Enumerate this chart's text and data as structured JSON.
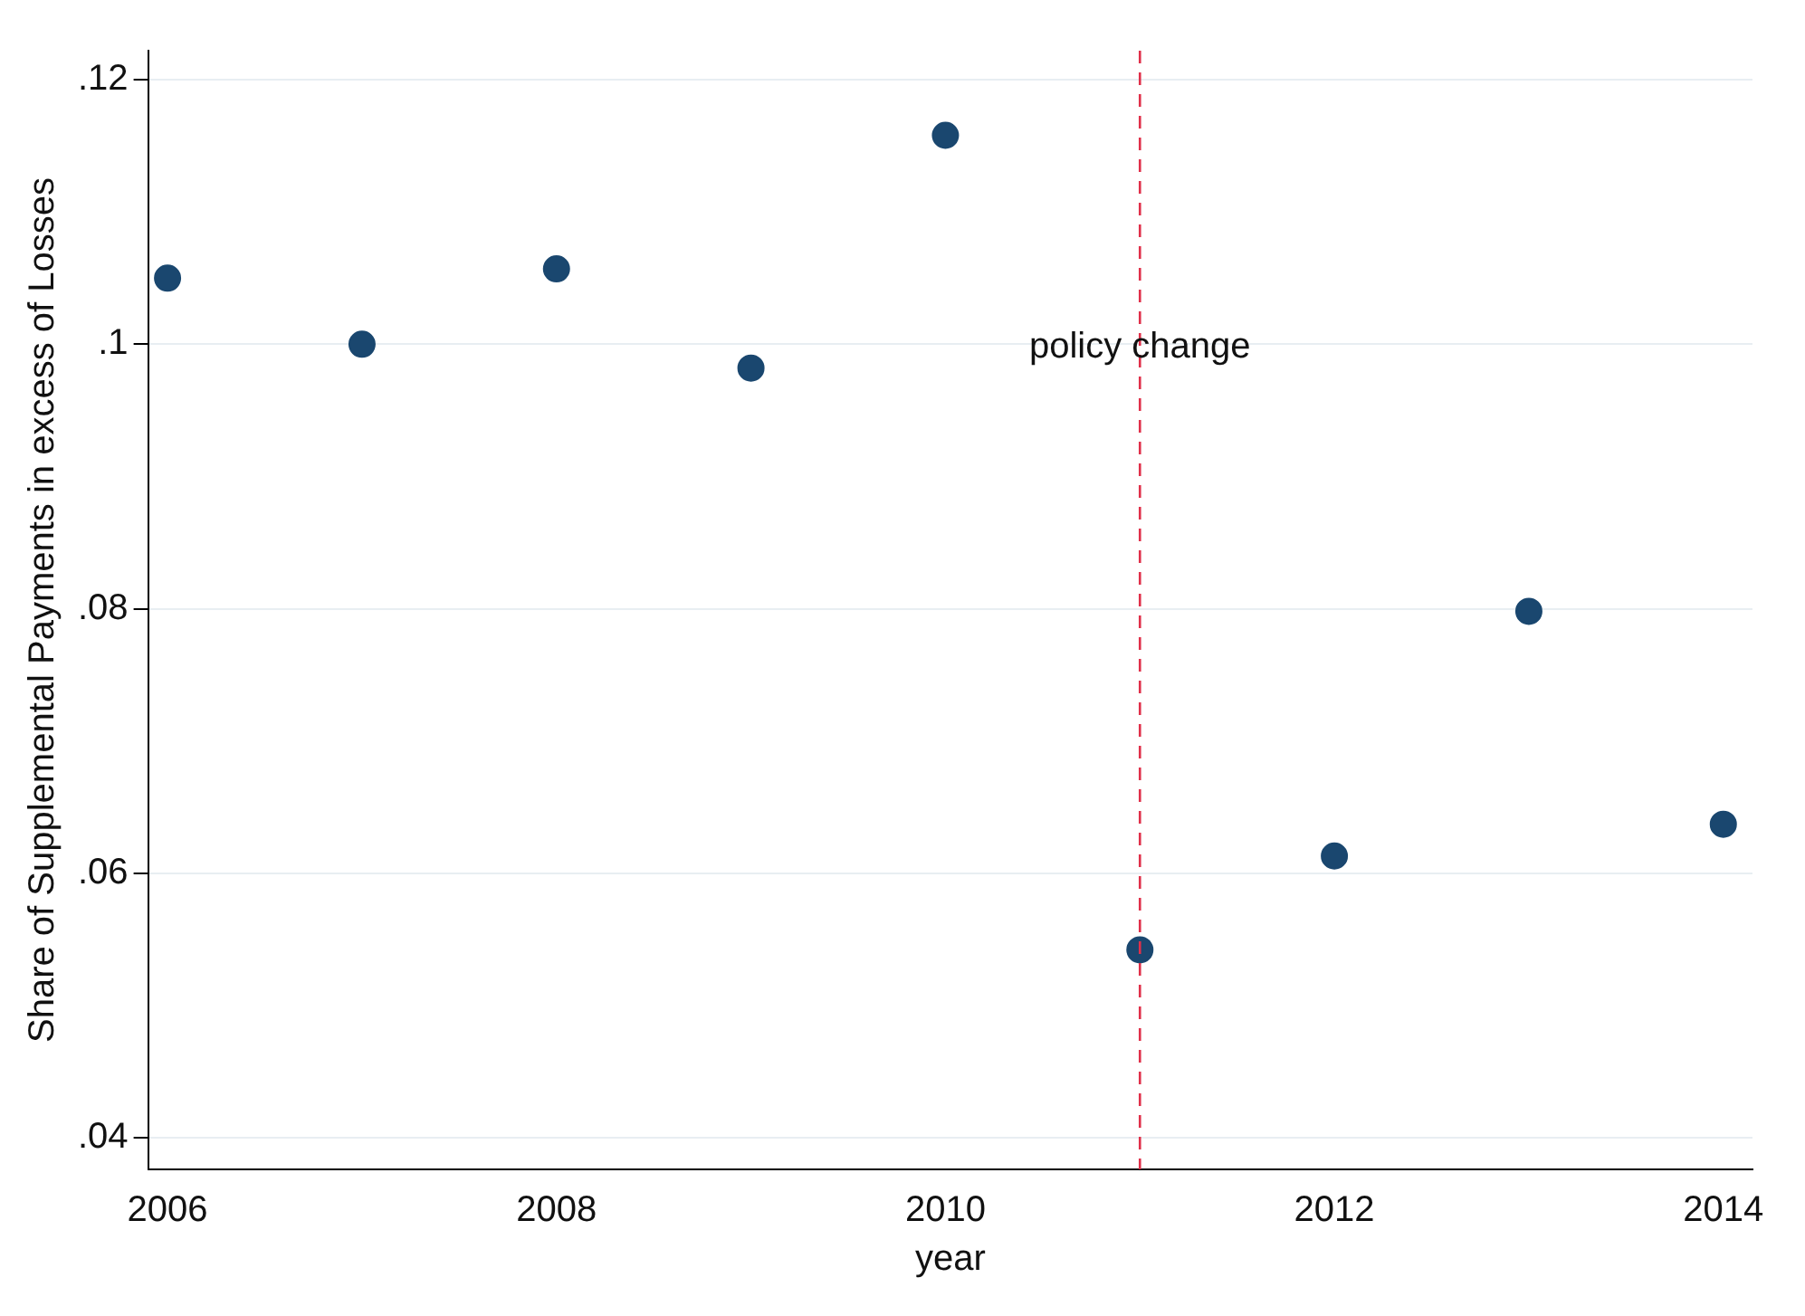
{
  "chart_data": {
    "type": "scatter",
    "xlabel": "year",
    "ylabel": "Share of Supplemental Payments in excess of Losses",
    "x": [
      2006,
      2007,
      2008,
      2009,
      2010,
      2011,
      2012,
      2013,
      2014
    ],
    "series": [
      {
        "color": "#1a476f",
        "values": [
          0.105,
          0.1,
          0.1057,
          0.0982,
          0.1158,
          0.0542,
          0.0613,
          0.0798,
          0.0637
        ]
      }
    ],
    "xlim": [
      2005.9,
      2014.15
    ],
    "xticks": [
      2006,
      2008,
      2010,
      2012,
      2014
    ],
    "ylim": [
      0.0376,
      0.1222
    ],
    "yticks": [
      {
        "value": 0.04,
        "label": ".04"
      },
      {
        "value": 0.06,
        "label": ".06"
      },
      {
        "value": 0.08,
        "label": ".08"
      },
      {
        "value": 0.1,
        "label": ".1"
      },
      {
        "value": 0.12,
        "label": ".12"
      }
    ],
    "ref_lines": [
      {
        "axis": "x",
        "value": 2011,
        "label": "policy change",
        "color": "#e0304a",
        "line_style": "dashed"
      }
    ],
    "grid": "y",
    "marker": "circle",
    "legend": false
  }
}
